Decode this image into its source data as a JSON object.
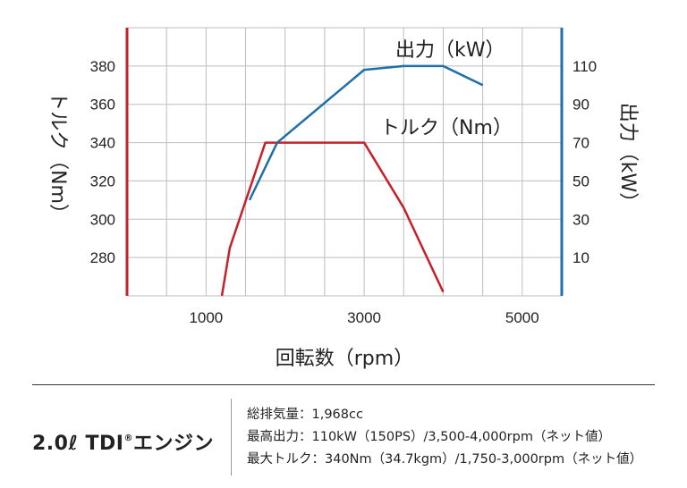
{
  "chart_data": {
    "type": "line",
    "xlabel": "回転数（rpm）",
    "x_ticks": [
      1000,
      3000,
      5000
    ],
    "xlim": [
      0,
      5500
    ],
    "y_left": {
      "label": "トルク（Nm）",
      "ticks": [
        280,
        300,
        320,
        340,
        360,
        380
      ],
      "lim": [
        260,
        400
      ]
    },
    "y_right": {
      "label": "出力（kW）",
      "ticks": [
        10,
        30,
        50,
        70,
        90,
        110
      ],
      "lim": [
        -10,
        130
      ]
    },
    "grid": true,
    "series": [
      {
        "name": "トルク（Nm）",
        "axis": "left",
        "color": "#c8202a",
        "x": [
          1200,
          1300,
          1750,
          3000,
          3500,
          4000
        ],
        "y": [
          260,
          285,
          340,
          340,
          306,
          262
        ]
      },
      {
        "name": "出力（kW）",
        "axis": "right",
        "color": "#1f6fa8",
        "x": [
          1550,
          1900,
          3000,
          3500,
          4000,
          4500
        ],
        "y": [
          40,
          70,
          108,
          110,
          110,
          100
        ]
      }
    ]
  },
  "engine": {
    "title_main": "2.0ℓ TDI",
    "title_reg": "®",
    "title_suffix": "エンジン",
    "specs": [
      "総排気量：1,968cc",
      "最高出力：110kW（150PS）/3,500-4,000rpm（ネット値）",
      "最大トルク：340Nm（34.7kgm）/1,750-3,000rpm（ネット値）"
    ]
  }
}
